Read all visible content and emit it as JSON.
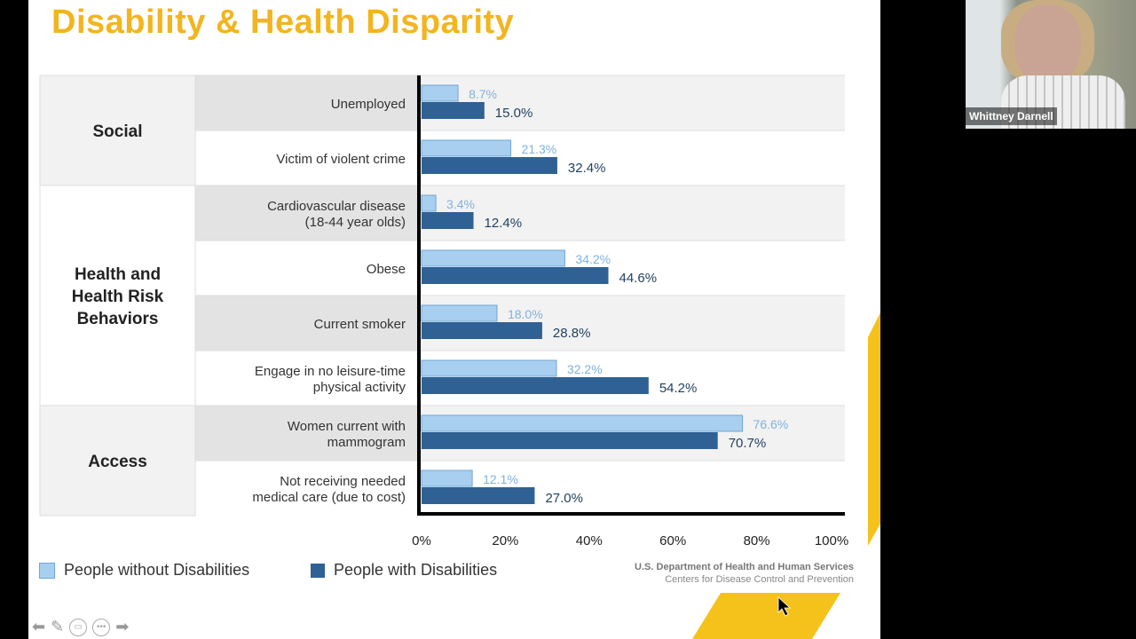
{
  "slide": {
    "title": "Disability & Health Disparity",
    "source_line1": "U.S. Department of Health and Human Services",
    "source_line2": "Centers for Disease Control and Prevention",
    "accent_color": "#f2b51f"
  },
  "nav": {
    "icons": [
      "arrow-left-icon",
      "pencil-icon",
      "slides-icon",
      "more-icon",
      "arrow-right-icon"
    ]
  },
  "video": {
    "participant_name": "Whittney Darnell"
  },
  "chart_data": {
    "type": "bar",
    "orientation": "horizontal",
    "groups": [
      {
        "label": "Social",
        "rows": [
          0,
          1
        ]
      },
      {
        "label": "Health and Health Risk Behaviors",
        "rows": [
          2,
          3,
          4,
          5
        ]
      },
      {
        "label": "Access",
        "rows": [
          6,
          7
        ]
      }
    ],
    "categories": [
      "Unemployed",
      "Victim of violent crime",
      "Cardiovascular disease (18-44 year olds)",
      "Obese",
      "Current smoker",
      "Engage in no leisure-time physical activity",
      "Women current with mammogram",
      "Not receiving needed medical care (due to cost)"
    ],
    "series": [
      {
        "name": "People without Disabilities",
        "color": "#a8cff0",
        "values": [
          8.7,
          21.3,
          3.4,
          34.2,
          18.0,
          32.2,
          76.6,
          12.1
        ]
      },
      {
        "name": "People with Disabilities",
        "color": "#2f6194",
        "values": [
          15.0,
          32.4,
          12.4,
          44.6,
          28.8,
          54.2,
          70.7,
          27.0
        ]
      }
    ],
    "xlim": [
      0,
      100
    ],
    "xticks": [
      "0%",
      "20%",
      "40%",
      "60%",
      "80%",
      "100%"
    ],
    "legend_position": "bottom-left",
    "grid": false
  }
}
